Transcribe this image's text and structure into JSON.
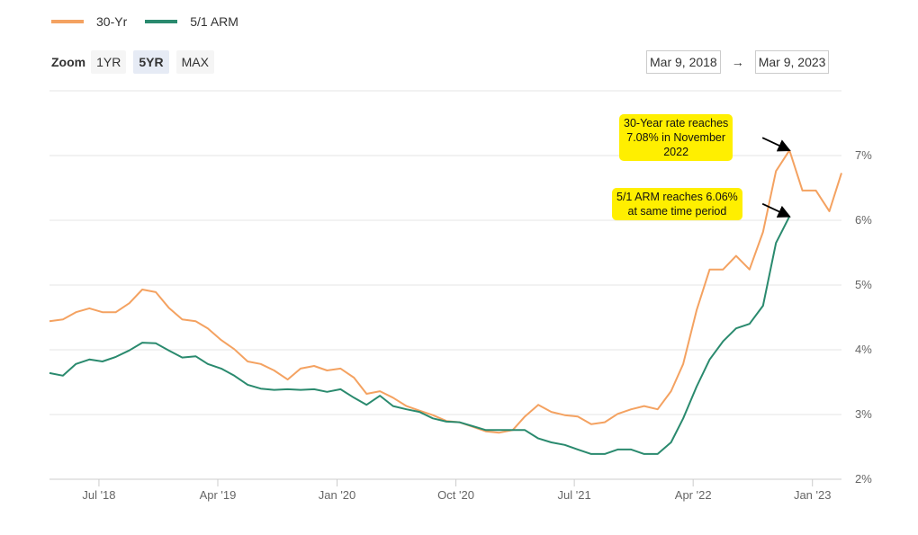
{
  "legend": [
    {
      "name": "30-Yr",
      "color": "#f4a261"
    },
    {
      "name": "5/1 ARM",
      "color": "#2a8a6e"
    }
  ],
  "zoom": {
    "label": "Zoom",
    "buttons": [
      "1YR",
      "5YR",
      "MAX"
    ],
    "selected": "5YR"
  },
  "range": {
    "from": "Mar 9, 2018",
    "arrow": "→",
    "to": "Mar 9, 2023"
  },
  "chart_data": {
    "type": "line",
    "xlim": [
      "2018-03-09",
      "2023-03-09"
    ],
    "ylim": [
      2,
      8
    ],
    "grid": true,
    "legend_position": "top-left",
    "x_ticks": [
      {
        "date": "2018-07-01",
        "label": "Jul '18"
      },
      {
        "date": "2019-04-01",
        "label": "Apr '19"
      },
      {
        "date": "2020-01-01",
        "label": "Jan '20"
      },
      {
        "date": "2020-10-01",
        "label": "Oct '20"
      },
      {
        "date": "2021-07-01",
        "label": "Jul '21"
      },
      {
        "date": "2022-04-01",
        "label": "Apr '22"
      },
      {
        "date": "2023-01-01",
        "label": "Jan '23"
      }
    ],
    "y_ticks": [
      {
        "value": 2,
        "label": "2%"
      },
      {
        "value": 3,
        "label": "3%"
      },
      {
        "value": 4,
        "label": "4%"
      },
      {
        "value": 5,
        "label": "5%"
      },
      {
        "value": 6,
        "label": "6%"
      },
      {
        "value": 7,
        "label": "7%"
      }
    ],
    "start_month": "2018-03",
    "series": [
      {
        "name": "30-Yr",
        "color": "#f4a261",
        "monthly_values": [
          4.44,
          4.47,
          4.58,
          4.64,
          4.58,
          4.58,
          4.72,
          4.93,
          4.89,
          4.65,
          4.47,
          4.44,
          4.33,
          4.15,
          4.01,
          3.82,
          3.78,
          3.68,
          3.54,
          3.71,
          3.75,
          3.68,
          3.71,
          3.57,
          3.32,
          3.36,
          3.26,
          3.13,
          3.06,
          2.99,
          2.9,
          2.88,
          2.81,
          2.74,
          2.72,
          2.76,
          2.97,
          3.15,
          3.04,
          2.99,
          2.97,
          2.85,
          2.88,
          3.01,
          3.08,
          3.13,
          3.08,
          3.36,
          3.78,
          4.61,
          5.24,
          5.24,
          5.45,
          5.24,
          5.82,
          6.76,
          7.08,
          6.46,
          6.46,
          6.14,
          6.73
        ]
      },
      {
        "name": "5/1 ARM",
        "color": "#2a8a6e",
        "monthly_values": [
          3.64,
          3.6,
          3.78,
          3.85,
          3.82,
          3.89,
          3.99,
          4.11,
          4.1,
          3.99,
          3.88,
          3.9,
          3.78,
          3.71,
          3.6,
          3.46,
          3.4,
          3.38,
          3.39,
          3.38,
          3.39,
          3.35,
          3.39,
          3.26,
          3.15,
          3.29,
          3.13,
          3.08,
          3.04,
          2.94,
          2.89,
          2.88,
          2.82,
          2.76,
          2.76,
          2.76,
          2.76,
          2.63,
          2.57,
          2.53,
          2.46,
          2.39,
          2.39,
          2.46,
          2.46,
          2.39,
          2.39,
          2.57,
          2.94,
          3.43,
          3.85,
          4.13,
          4.33,
          4.4,
          4.68,
          5.65,
          6.06
        ]
      }
    ],
    "annotations": [
      {
        "text": "30-Year rate reaches 7.08% in November 2022",
        "lines": [
          "30-Year rate reaches",
          "7.08% in November",
          "2022"
        ],
        "target_month": "2022-11",
        "target_value": 7.08
      },
      {
        "text": "5/1 ARM reaches 6.06% at same time period",
        "lines": [
          "5/1 ARM reaches 6.06%",
          "at same time period"
        ],
        "target_month": "2022-11",
        "target_value": 6.06
      }
    ]
  }
}
